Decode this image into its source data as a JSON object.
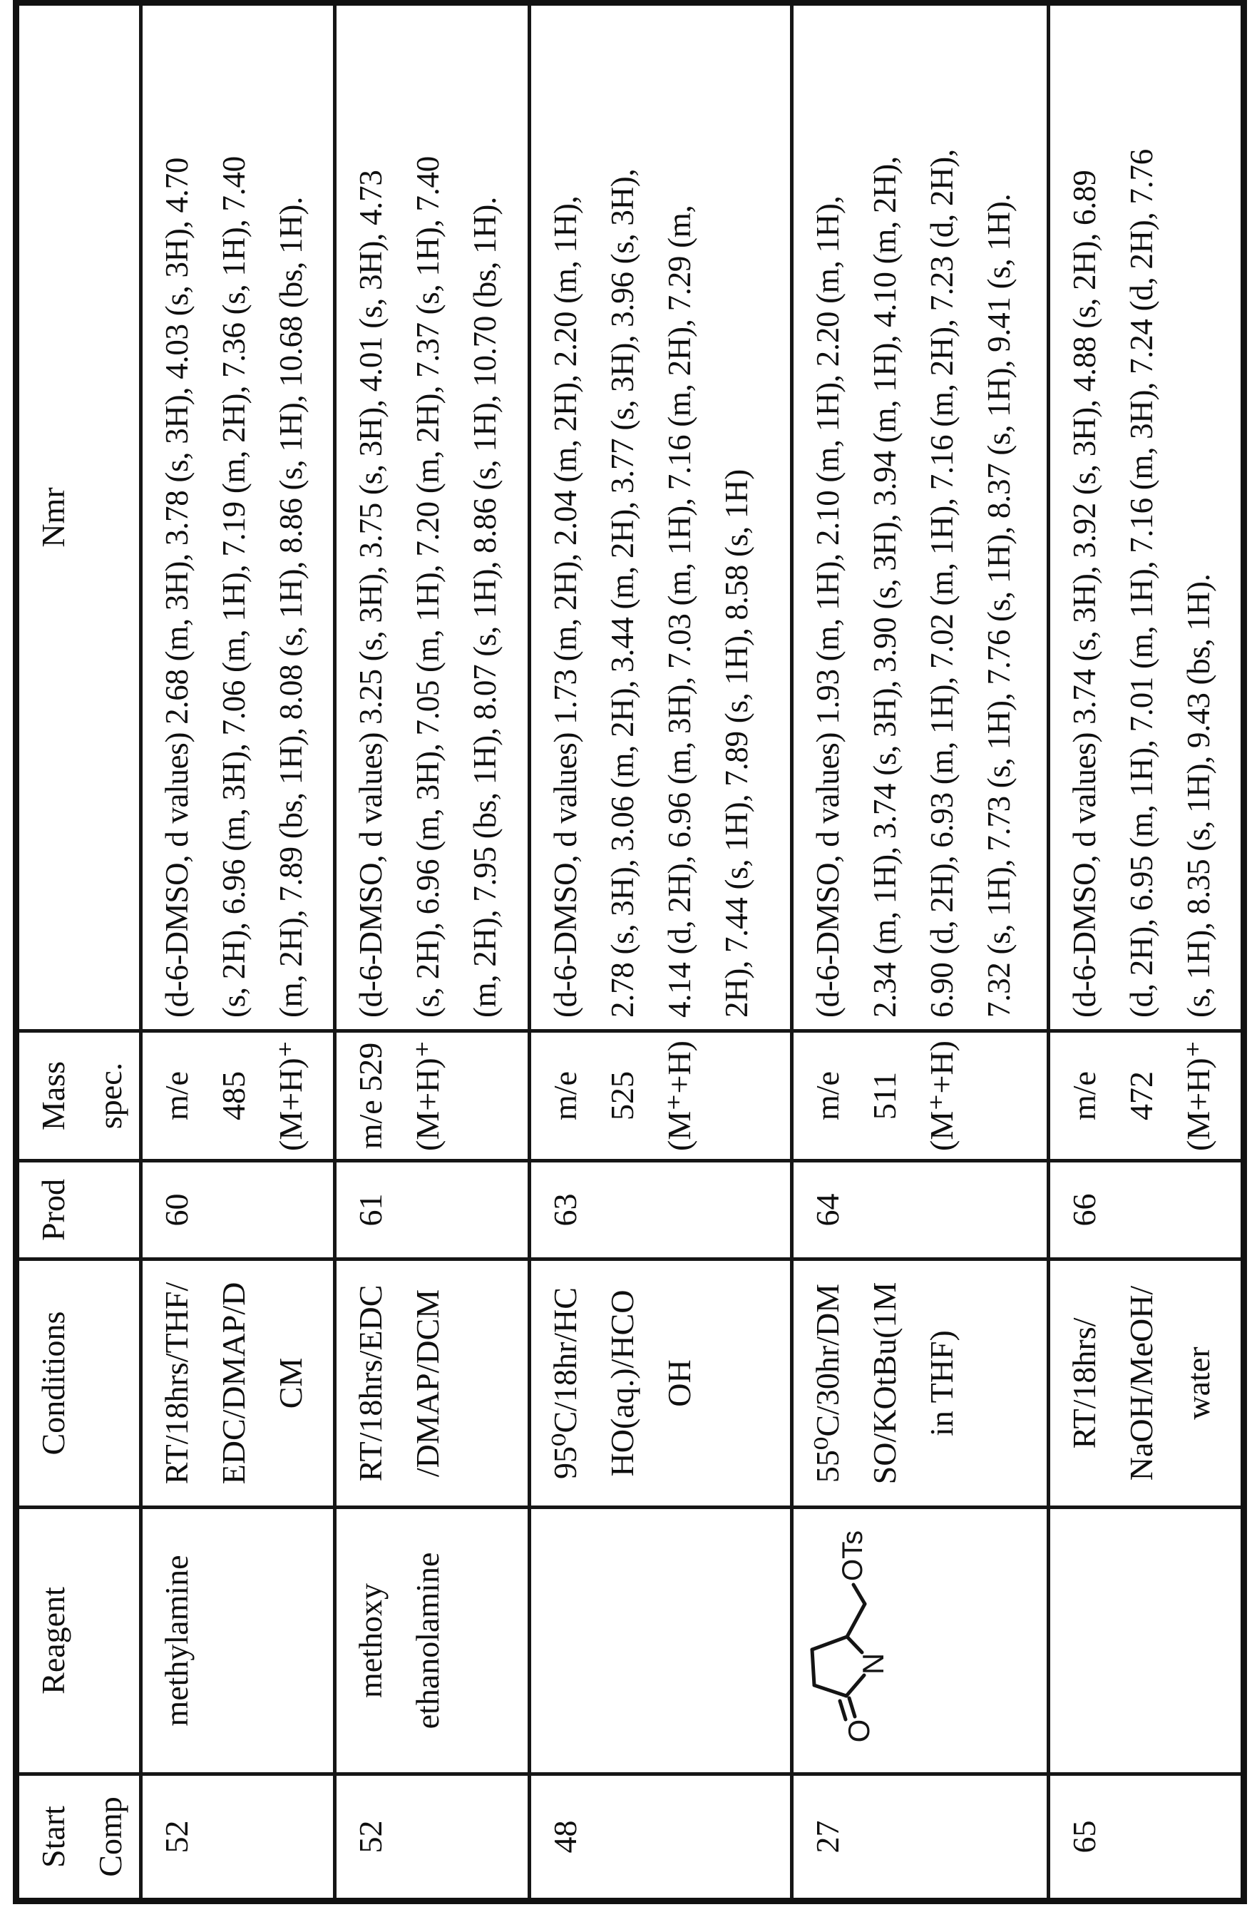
{
  "page": {
    "background": "#ffffff",
    "ink": "#111111"
  },
  "table": {
    "headers": {
      "start_comp": [
        "Start",
        "Comp"
      ],
      "reagent": "Reagent",
      "conditions": "Conditions",
      "prod": "Prod",
      "mass_spec": [
        "Mass",
        "spec."
      ],
      "nmr": "Nmr"
    },
    "rows": [
      {
        "start_comp": "52",
        "reagent_lines": [
          "methylamine"
        ],
        "conditions_lines": [
          "RT/18hrs/THF/",
          "EDC/DMAP/D",
          "CM"
        ],
        "prod": "60",
        "mass_lines": [
          "m/e",
          "485",
          "(M+H)⁺"
        ],
        "nmr_lines": [
          "(d-6-DMSO, d values) 2.68 (m, 3H), 3.78 (s, 3H), 4.03 (s, 3H), 4.70",
          "(s, 2H), 6.96 (m, 3H), 7.06 (m, 1H), 7.19 (m, 2H), 7.36 (s, 1H), 7.40",
          "(m, 2H), 7.89 (bs, 1H), 8.08 (s, 1H), 8.86 (s, 1H), 10.68 (bs, 1H)."
        ]
      },
      {
        "start_comp": "52",
        "reagent_lines": [
          "methoxy",
          "ethanolamine"
        ],
        "conditions_lines": [
          "RT/18hrs/EDC",
          "/DMAP/DCM"
        ],
        "prod": "61",
        "mass_lines": [
          "m/e 529",
          "(M+H)⁺"
        ],
        "nmr_lines": [
          "(d-6-DMSO, d values) 3.25 (s, 3H), 3.75 (s, 3H), 4.01 (s, 3H), 4.73",
          "(s, 2H), 6.96 (m, 3H), 7.05 (m, 1H), 7.20 (m, 2H), 7.37 (s, 1H), 7.40",
          "(m, 2H), 7.95 (bs, 1H), 8.07 (s, 1H), 8.86 (s, 1H), 10.70 (bs, 1H)."
        ]
      },
      {
        "start_comp": "48",
        "reagent_lines": [],
        "conditions_lines": [
          "95⁰C/18hr/HC",
          "HO(aq.)/HCO",
          "OH"
        ],
        "prod": "63",
        "mass_lines": [
          "m/e",
          "525",
          "(M⁺+H)"
        ],
        "nmr_lines": [
          "(d-6-DMSO, d values)  1.73 (m, 2H), 2.04 (m, 2H), 2.20 (m, 1H),",
          "2.78 (s, 3H), 3.06 (m, 2H), 3.44 (m, 2H), 3.77 (s, 3H), 3.96 (s, 3H),",
          "4.14 (d, 2H), 6.96 (m, 3H), 7.03 (m, 1H), 7.16 (m, 2H), 7.29 (m,",
          "2H), 7.44 (s, 1H), 7.89 (s, 1H), 8.58 (s, 1H)"
        ]
      },
      {
        "start_comp": "27",
        "reagent_lines": [],
        "structure": {
          "ots": "OTs",
          "n": "N",
          "o": "O"
        },
        "conditions_lines": [
          "55⁰C/30hr/DM",
          "SO/KOtBu(1M",
          "in THF)"
        ],
        "prod": "64",
        "mass_lines": [
          "m/e",
          "511",
          "(M⁺+H)"
        ],
        "nmr_lines": [
          "(d-6-DMSO, d values)  1.93 (m, 1H), 2.10 (m, 1H), 2.20 (m, 1H),",
          "2.34 (m, 1H), 3.74 (s, 3H), 3.90 (s, 3H), 3.94 (m, 1H), 4.10 (m, 2H),",
          "6.90 (d, 2H), 6.93 (m, 1H), 7.02 (m, 1H), 7.16 (m, 2H), 7.23 (d, 2H),",
          "7.32 (s, 1H), 7.73 (s, 1H), 7.76 (s, 1H), 8.37 (s, 1H), 9.41 (s, 1H)."
        ]
      },
      {
        "start_comp": "65",
        "reagent_lines": [],
        "conditions_lines": [
          "RT/18hrs/",
          "NaOH/MeOH/",
          "water"
        ],
        "prod": "66",
        "mass_lines": [
          "m/e",
          "472",
          "(M+H)⁺"
        ],
        "nmr_lines": [
          "(d-6-DMSO, d values) 3.74 (s, 3H), 3.92 (s, 3H), 4.88 (s, 2H), 6.89",
          "(d, 2H), 6.95 (m, 1H), 7.01 (m, 1H), 7.16 (m, 3H), 7.24 (d, 2H), 7.76",
          "(s, 1H), 8.35 (s, 1H), 9.43 (bs, 1H)."
        ]
      }
    ]
  }
}
